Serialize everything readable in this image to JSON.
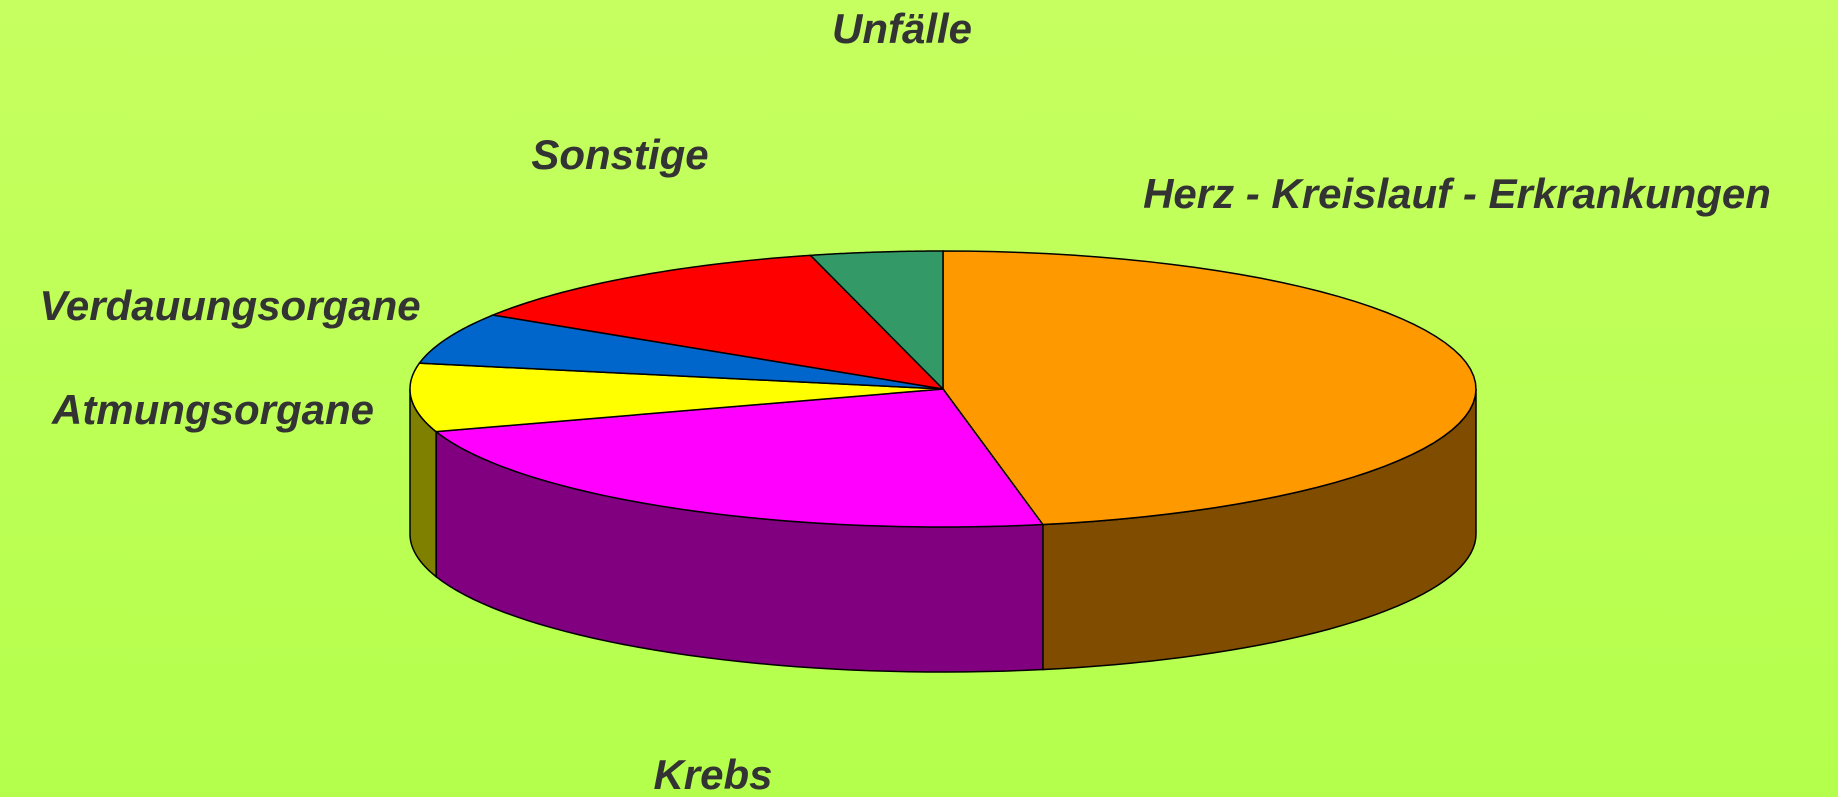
{
  "chart_data": {
    "type": "pie3d",
    "categories": [
      "Herz - Kreislauf - Erkrankungen",
      "Krebs",
      "Atmungsorgane",
      "Verdauungsorgane",
      "Sonstige",
      "Unfälle"
    ],
    "values": [
      47,
      23,
      8,
      6,
      12,
      4
    ],
    "colors": [
      "#ff9900",
      "#ff00ff",
      "#ffff00",
      "#0066cc",
      "#ff0000",
      "#339966"
    ],
    "side_colors": [
      "#804c00",
      "#800080",
      "#808000",
      "#003366",
      "#800000",
      "#1a4d33"
    ]
  }
}
